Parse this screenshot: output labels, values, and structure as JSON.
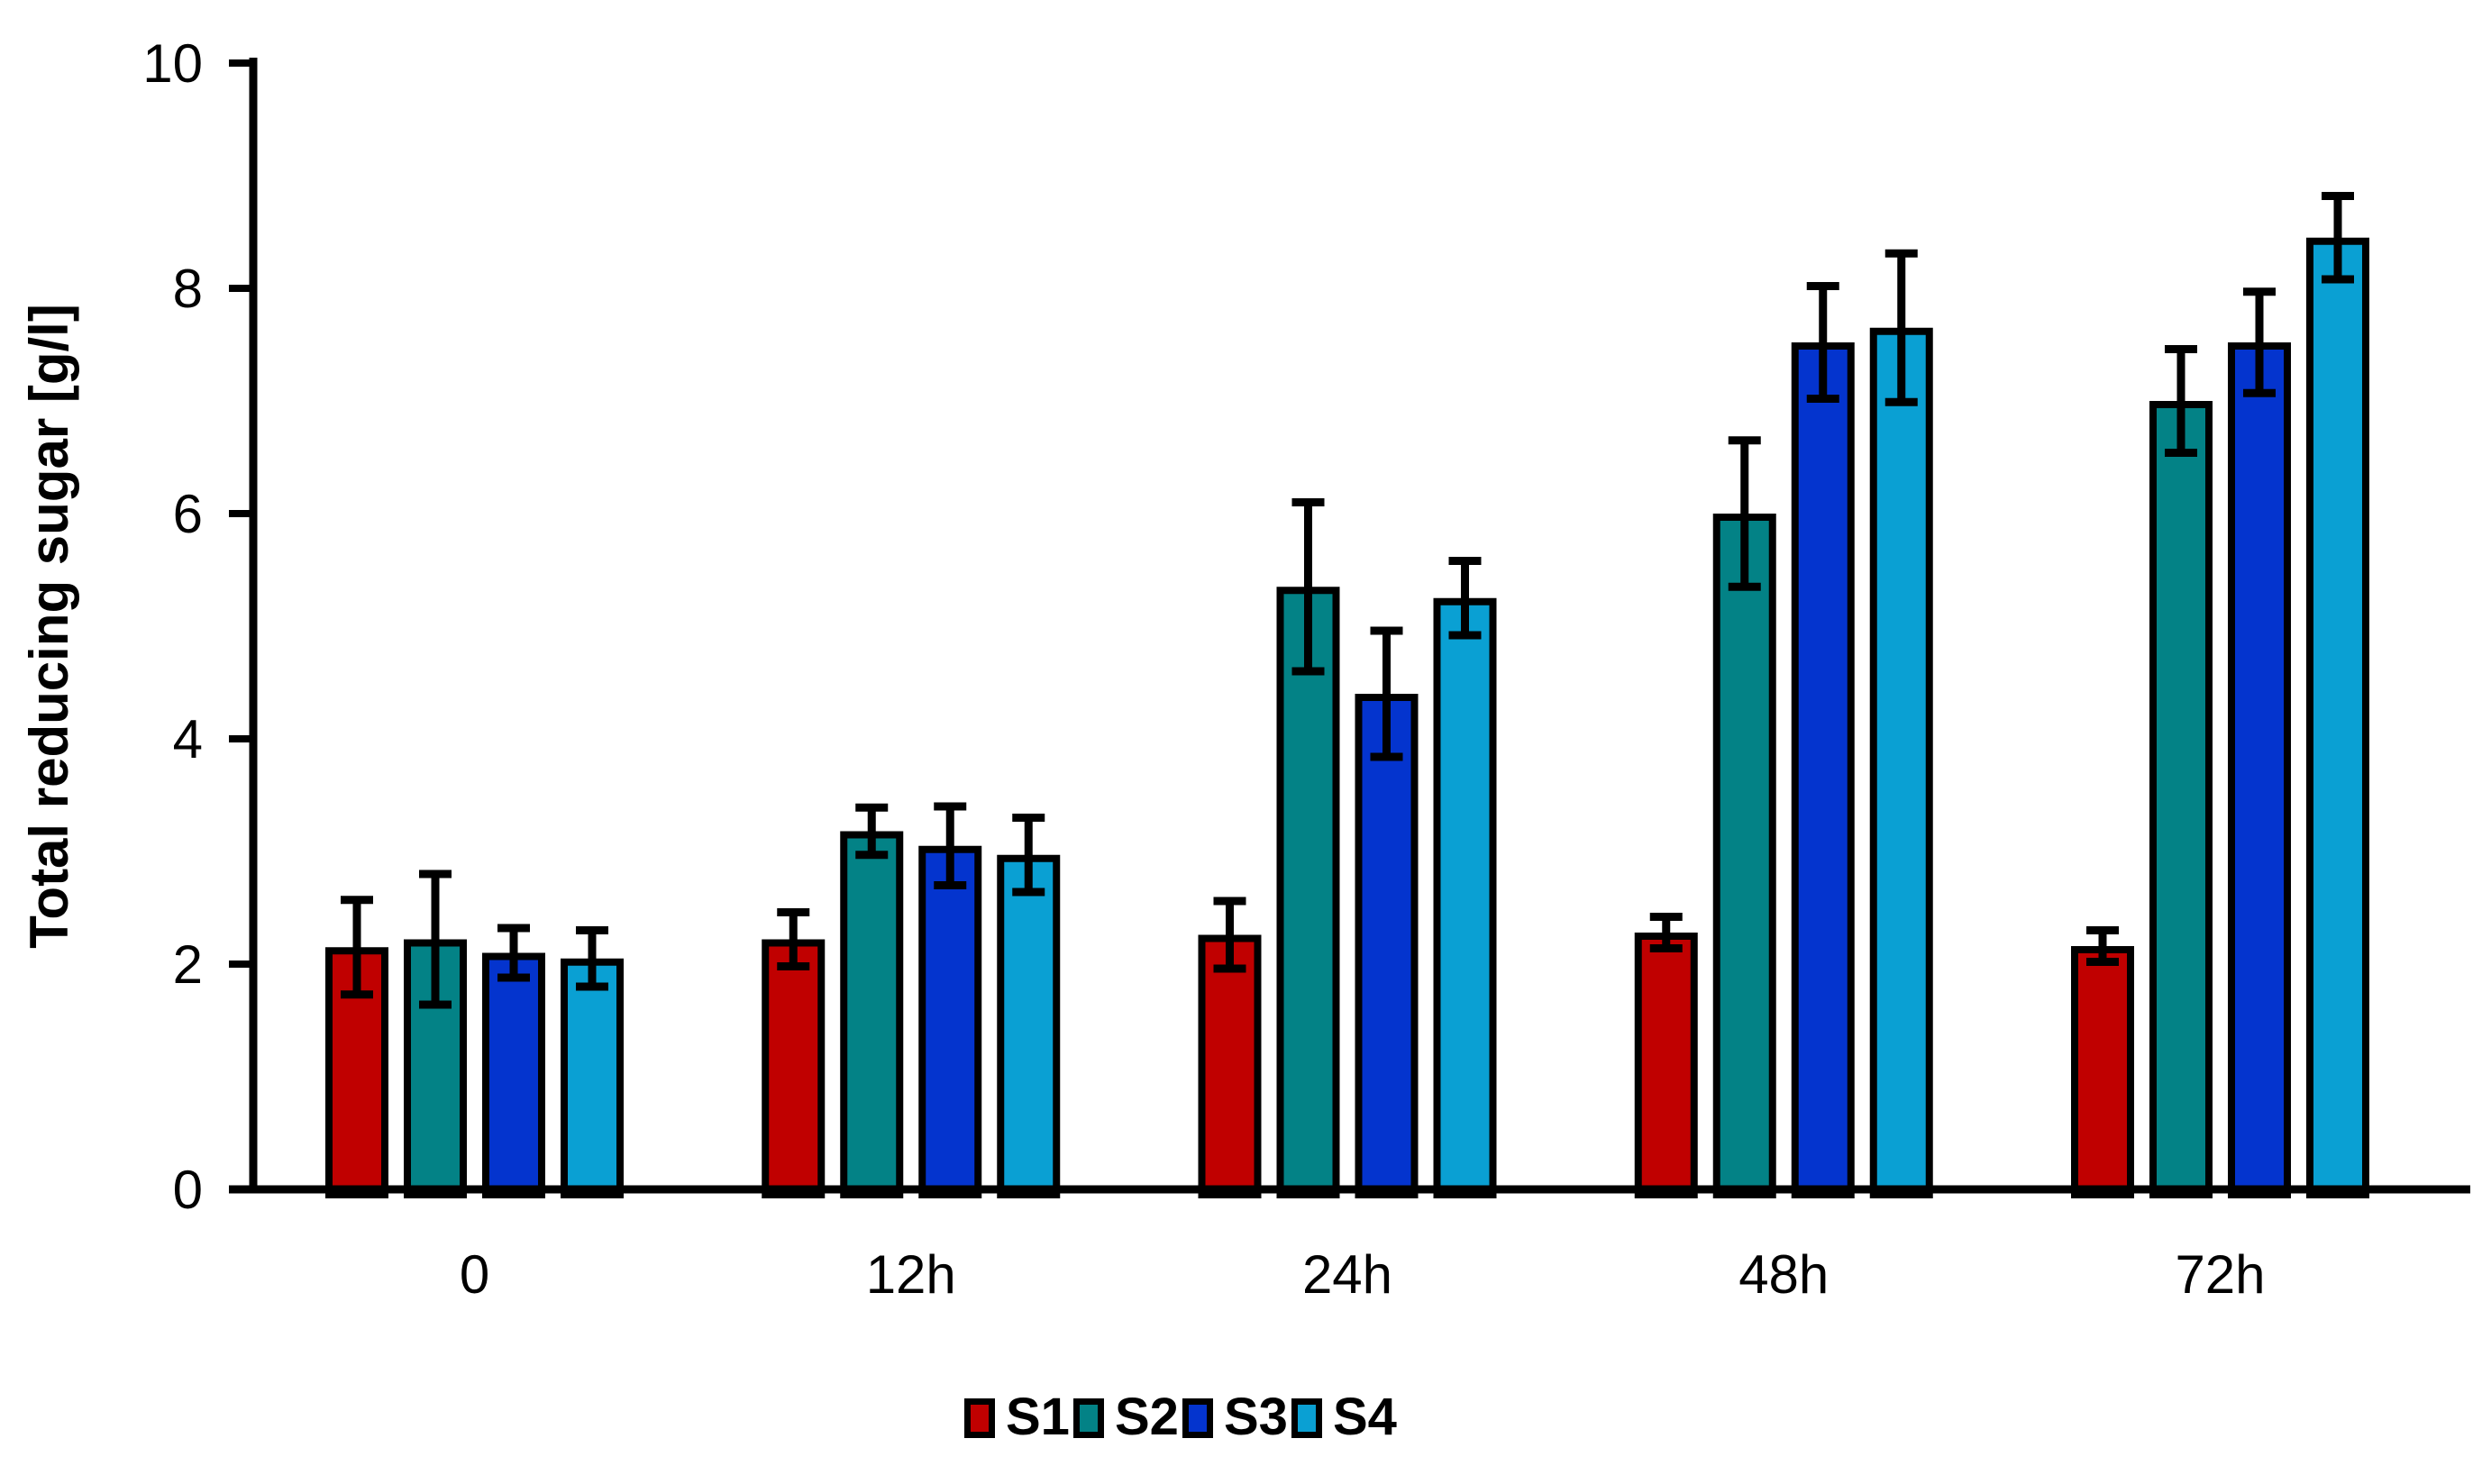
{
  "figure": {
    "background": "#FFFFFF",
    "axis_color": "#000000",
    "error_bar_color": "#000000",
    "bar_outline_color": "#000000"
  },
  "chart_data": {
    "type": "bar",
    "title": "",
    "xlabel": "",
    "ylabel": "Total reducing sugar [g/l]",
    "categories": [
      "0",
      "12h",
      "24h",
      "48h",
      "72h"
    ],
    "ylim": [
      0,
      10
    ],
    "yticks": [
      0,
      2,
      4,
      6,
      8,
      10
    ],
    "grid": false,
    "legend_position": "bottom",
    "error_bars": true,
    "series": [
      {
        "name": "S1",
        "color": "#C00000",
        "values": [
          2.15,
          2.22,
          2.26,
          2.28,
          2.16
        ],
        "errors": [
          0.42,
          0.24,
          0.3,
          0.14,
          0.14
        ]
      },
      {
        "name": "S2",
        "color": "#038286",
        "values": [
          2.22,
          3.18,
          5.35,
          6.0,
          7.0
        ],
        "errors": [
          0.58,
          0.21,
          0.75,
          0.65,
          0.46
        ]
      },
      {
        "name": "S3",
        "color": "#0434CE",
        "values": [
          2.1,
          3.05,
          4.4,
          7.52,
          7.52
        ],
        "errors": [
          0.22,
          0.35,
          0.56,
          0.5,
          0.45
        ]
      },
      {
        "name": "S4",
        "color": "#0AA0D3",
        "values": [
          2.05,
          2.97,
          5.25,
          7.65,
          8.45
        ],
        "errors": [
          0.25,
          0.33,
          0.33,
          0.66,
          0.37
        ]
      }
    ]
  }
}
